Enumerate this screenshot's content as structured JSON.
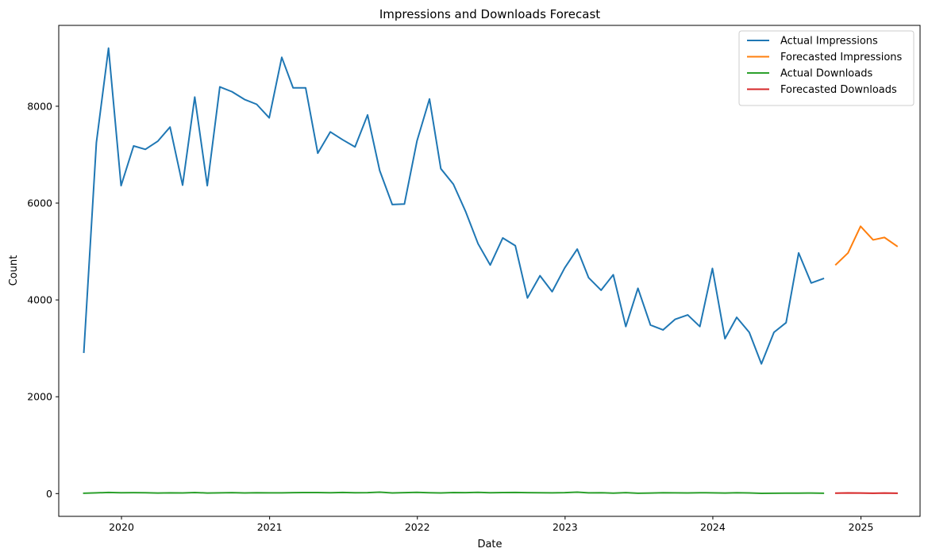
{
  "chart_data": {
    "type": "line",
    "title": "Impressions and Downloads Forecast",
    "xlabel": "Date",
    "ylabel": "Count",
    "xlim": [
      "2019-07-30",
      "2025-05-27"
    ],
    "ylim": [
      -470,
      9670
    ],
    "xticks": [
      "2020",
      "2021",
      "2022",
      "2023",
      "2024",
      "2025"
    ],
    "yticks": [
      0,
      2000,
      4000,
      6000,
      8000
    ],
    "grid": false,
    "legend": "top-right",
    "series": [
      {
        "name": "Actual Impressions",
        "color": "#1f77b4",
        "x": [
          "2019-09-30",
          "2019-10-31",
          "2019-11-30",
          "2019-12-31",
          "2020-01-31",
          "2020-02-29",
          "2020-03-31",
          "2020-04-30",
          "2020-05-31",
          "2020-06-30",
          "2020-07-31",
          "2020-08-31",
          "2020-09-30",
          "2020-10-31",
          "2020-11-30",
          "2020-12-31",
          "2021-01-31",
          "2021-02-28",
          "2021-03-31",
          "2021-04-30",
          "2021-05-31",
          "2021-06-30",
          "2021-07-31",
          "2021-08-31",
          "2021-09-30",
          "2021-10-31",
          "2021-11-30",
          "2021-12-31",
          "2022-01-31",
          "2022-02-28",
          "2022-03-31",
          "2022-04-30",
          "2022-05-31",
          "2022-06-30",
          "2022-07-31",
          "2022-08-31",
          "2022-09-30",
          "2022-10-31",
          "2022-11-30",
          "2022-12-31",
          "2023-01-31",
          "2023-02-28",
          "2023-03-31",
          "2023-04-30",
          "2023-05-31",
          "2023-06-30",
          "2023-07-31",
          "2023-08-31",
          "2023-09-30",
          "2023-10-31",
          "2023-11-30",
          "2023-12-31",
          "2024-01-31",
          "2024-02-29",
          "2024-03-31",
          "2024-04-30",
          "2024-05-31",
          "2024-06-30",
          "2024-07-31",
          "2024-08-31",
          "2024-09-30"
        ],
        "values": [
          2920,
          7250,
          9200,
          6360,
          7180,
          7110,
          7280,
          7570,
          6370,
          8190,
          6360,
          8400,
          8300,
          8140,
          8040,
          7760,
          9010,
          8380,
          8380,
          7030,
          7470,
          7310,
          7160,
          7820,
          6670,
          5970,
          5980,
          7280,
          8150,
          6710,
          6390,
          5830,
          5160,
          4720,
          5280,
          5120,
          4040,
          4500,
          4170,
          4660,
          5050,
          4460,
          4200,
          4520,
          3450,
          4240,
          3480,
          3380,
          3600,
          3690,
          3450,
          4650,
          3200,
          3640,
          3330,
          2680,
          3330,
          3530,
          4970,
          4350,
          4440
        ]
      },
      {
        "name": "Forecasted Impressions",
        "color": "#ff7f0e",
        "x": [
          "2024-10-31",
          "2024-11-30",
          "2024-12-31",
          "2025-01-31",
          "2025-02-28",
          "2025-03-31"
        ],
        "values": [
          4730,
          4970,
          5520,
          5240,
          5290,
          5110
        ]
      },
      {
        "name": "Actual Downloads",
        "color": "#2ca02c",
        "x": [
          "2019-09-30",
          "2019-10-31",
          "2019-11-30",
          "2019-12-31",
          "2020-01-31",
          "2020-02-29",
          "2020-03-31",
          "2020-04-30",
          "2020-05-31",
          "2020-06-30",
          "2020-07-31",
          "2020-08-31",
          "2020-09-30",
          "2020-10-31",
          "2020-11-30",
          "2020-12-31",
          "2021-01-31",
          "2021-02-28",
          "2021-03-31",
          "2021-04-30",
          "2021-05-31",
          "2021-06-30",
          "2021-07-31",
          "2021-08-31",
          "2021-09-30",
          "2021-10-31",
          "2021-11-30",
          "2021-12-31",
          "2022-01-31",
          "2022-02-28",
          "2022-03-31",
          "2022-04-30",
          "2022-05-31",
          "2022-06-30",
          "2022-07-31",
          "2022-08-31",
          "2022-09-30",
          "2022-10-31",
          "2022-11-30",
          "2022-12-31",
          "2023-01-31",
          "2023-02-28",
          "2023-03-31",
          "2023-04-30",
          "2023-05-31",
          "2023-06-30",
          "2023-07-31",
          "2023-08-31",
          "2023-09-30",
          "2023-10-31",
          "2023-11-30",
          "2023-12-31",
          "2024-01-31",
          "2024-02-29",
          "2024-03-31",
          "2024-04-30",
          "2024-05-31",
          "2024-06-30",
          "2024-07-31",
          "2024-08-31",
          "2024-09-30"
        ],
        "values": [
          8,
          15,
          24,
          18,
          20,
          18,
          12,
          16,
          14,
          22,
          12,
          16,
          20,
          14,
          18,
          16,
          15,
          20,
          22,
          22,
          18,
          24,
          18,
          20,
          30,
          14,
          20,
          26,
          18,
          14,
          22,
          20,
          26,
          18,
          22,
          24,
          20,
          18,
          16,
          20,
          30,
          16,
          18,
          10,
          20,
          8,
          12,
          18,
          16,
          14,
          18,
          16,
          12,
          18,
          14,
          6,
          8,
          10,
          10,
          12,
          8
        ]
      },
      {
        "name": "Forecasted Downloads",
        "color": "#d62728",
        "x": [
          "2024-10-31",
          "2024-11-30",
          "2024-12-31",
          "2025-01-31",
          "2025-02-28",
          "2025-03-31"
        ],
        "values": [
          10,
          14,
          12,
          8,
          12,
          8
        ]
      }
    ]
  }
}
